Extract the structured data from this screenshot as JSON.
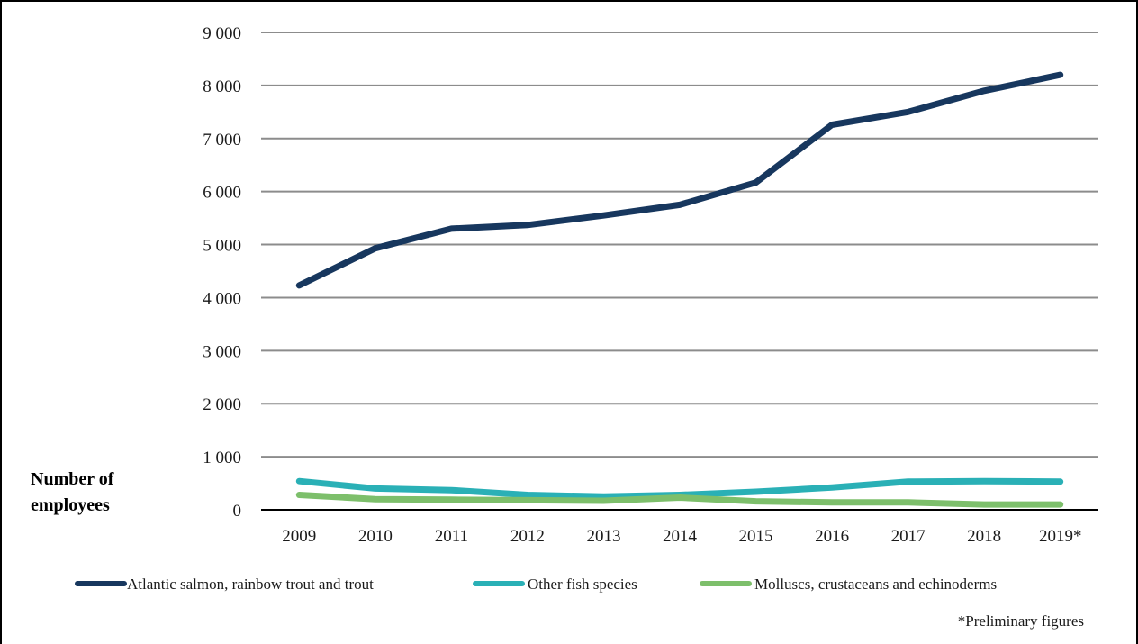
{
  "chart_data": {
    "type": "line",
    "title": "",
    "xlabel": "",
    "ylabel": "Number of employees",
    "ylabel_lines": [
      "Number of",
      "employees"
    ],
    "categories": [
      "2009",
      "2010",
      "2011",
      "2012",
      "2013",
      "2014",
      "2015",
      "2016",
      "2017",
      "2018",
      "2019*"
    ],
    "ylim": [
      0,
      9000
    ],
    "yticks": [
      0,
      1000,
      2000,
      3000,
      4000,
      5000,
      6000,
      7000,
      8000,
      9000
    ],
    "ytick_labels": [
      "0",
      "1 000",
      "2 000",
      "3 000",
      "4 000",
      "5 000",
      "6 000",
      "7 000",
      "8 000",
      "9 000"
    ],
    "grid": true,
    "legend_position": "bottom",
    "series": [
      {
        "name": "Atlantic salmon, rainbow trout and trout",
        "color": "#17375e",
        "values": [
          4230,
          4930,
          5300,
          5370,
          5550,
          5750,
          6170,
          7260,
          7500,
          7900,
          8200
        ]
      },
      {
        "name": "Other fish species",
        "color": "#2ab0b6",
        "values": [
          540,
          400,
          370,
          280,
          250,
          280,
          340,
          420,
          530,
          540,
          530
        ]
      },
      {
        "name": "Molluscs, crustaceans and echinoderms",
        "color": "#7dbf6b",
        "values": [
          280,
          200,
          190,
          180,
          170,
          230,
          160,
          140,
          140,
          100,
          100
        ]
      }
    ],
    "annotation": "*Preliminary figures"
  }
}
